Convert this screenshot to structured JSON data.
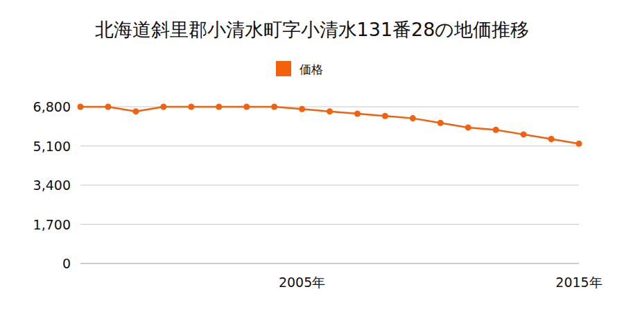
{
  "chart_data": {
    "type": "line",
    "title": "北海道斜里郡小清水町字小清水131番28の地価推移",
    "categories": [
      null,
      null,
      null,
      null,
      null,
      null,
      null,
      null,
      "2005年",
      null,
      null,
      null,
      null,
      null,
      null,
      null,
      null,
      null,
      "2015年"
    ],
    "series": [
      {
        "name": "価格",
        "color": "#f4600c",
        "marker": "circle",
        "values": [
          6800,
          6800,
          6600,
          6800,
          6800,
          6800,
          6800,
          6800,
          6700,
          6600,
          6500,
          6400,
          6300,
          6100,
          5900,
          5800,
          5600,
          5400,
          5200
        ]
      }
    ],
    "ylim": [
      0,
      6800
    ],
    "yticks": [
      0,
      {
        "value": 1700,
        "label": "1,700"
      },
      {
        "value": 3400,
        "label": "3,400"
      },
      {
        "value": 5100,
        "label": "5,100"
      },
      {
        "value": 6800,
        "label": "6,800"
      }
    ],
    "grid": true,
    "legend": "top"
  }
}
